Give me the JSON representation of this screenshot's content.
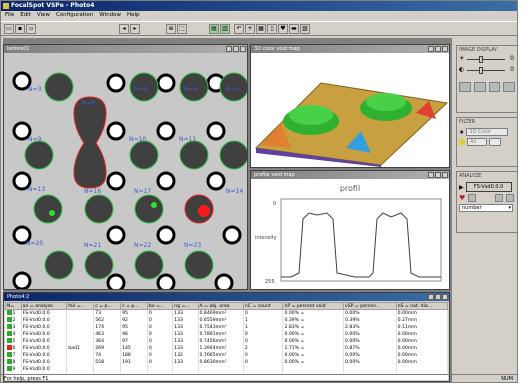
{
  "app": {
    "title": "FocalSpot VSPe - Photo4",
    "statusbar": "For help, press F1",
    "num": "NUM"
  },
  "menu": [
    "File",
    "Edit",
    "View",
    "Configuration",
    "Window",
    "Help"
  ],
  "windows": {
    "image": {
      "title": "before01"
    },
    "surface": {
      "title": "3D color void map"
    },
    "profile": {
      "title": "profile void map",
      "chart_title": "profil",
      "ylabel": "intensity",
      "y_top": "0",
      "y_bottom": "255"
    },
    "table": {
      "title": "Photo4:2"
    }
  },
  "labels": {
    "n3": "N=3",
    "n5": "N=5",
    "n4": "N=4",
    "n2": "N=2",
    "n6": "N=6",
    "n9": "N=9",
    "n10": "N=10",
    "n11": "N=11",
    "n13": "N=13",
    "n16": "N=16",
    "n17": "N=17",
    "n14": "N=14",
    "n20": "N=20",
    "n21": "N=21",
    "n22": "N=22",
    "n23": "N=23"
  },
  "panels": {
    "image_display": {
      "title": "IMAGE DISPLAY",
      "v1": "0",
      "v2": "0"
    },
    "filter": {
      "title": "FILTER",
      "select1": "3D Color",
      "select2": "All"
    },
    "analyze": {
      "title": "ANALYZE",
      "button": "FS-Vsd0.0.0",
      "select": "number"
    }
  },
  "table": {
    "columns": [
      "N=",
      "an = analyze",
      "fail =...",
      "c = p...",
      "c = p...",
      "bo =...",
      "ng =...",
      "A = obj. area",
      "nC = count",
      "nP = percent void",
      "vSP = percen...",
      "nS = nat. dia..."
    ],
    "rows": [
      {
        "color": "#2fa82f",
        "cells": [
          "1",
          "FS-Vsd0.0.0",
          "",
          "73",
          "95",
          "0",
          "133",
          "0.8469mm²",
          "0",
          "0.00% =",
          "0.00%",
          "0.00mm"
        ]
      },
      {
        "color": "#2fa82f",
        "cells": [
          "2",
          "FS-Vsd0.0.0",
          "",
          "562",
          "92",
          "0",
          "133",
          "0.6559mm²",
          "1",
          "0.39% =",
          "0.39%",
          "0.27mm"
        ]
      },
      {
        "color": "#2fa82f",
        "cells": [
          "3",
          "FS-Vsd0.0.0",
          "",
          "174",
          "95",
          "0",
          "133",
          "0.7543mm²",
          "1",
          "2.83% =",
          "2.83%",
          "0.11mm"
        ]
      },
      {
        "color": "#2fa82f",
        "cells": [
          "4",
          "FS-Vsd0.0.0",
          "",
          "463",
          "96",
          "0",
          "133",
          "0.7891mm²",
          "0",
          "0.00% =",
          "0.00%",
          "0.00mm"
        ]
      },
      {
        "color": "#2fa82f",
        "cells": [
          "5",
          "FS-Vsd0.0.0",
          "",
          "364",
          "97",
          "0",
          "133",
          "0.7456mm²",
          "0",
          "0.00% =",
          "0.00%",
          "0.00mm"
        ]
      },
      {
        "color": "#e02020",
        "cells": [
          "6",
          "FS-Vsd0.0.0",
          "bad1",
          "269",
          "145",
          "0",
          "133",
          "1.3944mm²",
          "2",
          "1.71% =",
          "0.87%",
          "0.00mm"
        ]
      },
      {
        "color": "#2fa82f",
        "cells": [
          "7",
          "FS-Vsd0.0.0",
          "",
          "74",
          "188",
          "0",
          "132",
          "0.7665mm²",
          "0",
          "0.00% =",
          "0.00%",
          "0.00mm"
        ]
      },
      {
        "color": "#2fa82f",
        "cells": [
          "8",
          "FS-Vsd0.0.0",
          "",
          "558",
          "191",
          "0",
          "133",
          "0.8630mm²",
          "0",
          "0.00% =",
          "0.00%",
          "0.00mm"
        ]
      },
      {
        "color": "#2fa82f",
        "cells": [
          "9",
          "FS-Vsd0.0.0",
          "",
          "",
          "",
          "",
          "",
          "",
          "",
          "",
          "",
          ""
        ]
      }
    ]
  }
}
